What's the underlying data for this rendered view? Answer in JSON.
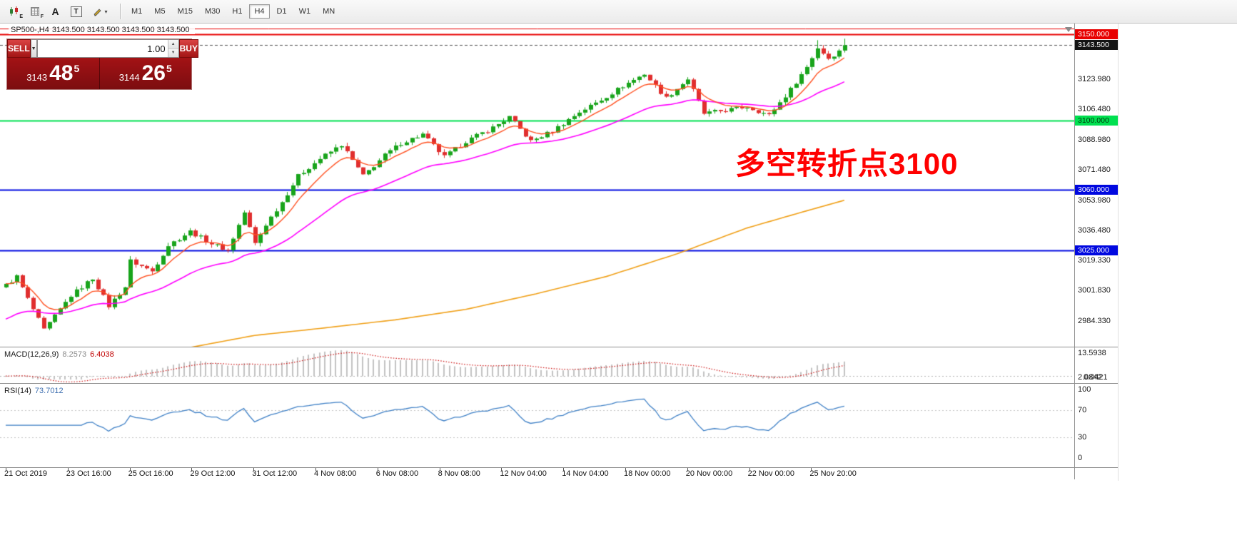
{
  "toolbar": {
    "icons": [
      {
        "name": "chart-type",
        "sub": "E"
      },
      {
        "name": "indicators",
        "sub": "F"
      },
      {
        "name": "text-label",
        "glyph": "A"
      },
      {
        "name": "text-box",
        "glyph": "T"
      },
      {
        "name": "drawing-tools",
        "caret": "▾"
      }
    ],
    "timeframes": [
      "M1",
      "M5",
      "M15",
      "M30",
      "H1",
      "H4",
      "D1",
      "W1",
      "MN"
    ],
    "active_timeframe": "H4"
  },
  "chart": {
    "symbol_label": "SP500-,H4",
    "ohlc_label": "3143.500 3143.500 3143.500 3143.500",
    "annotation": {
      "text": "多空转折点3100",
      "color": "#ff0000"
    },
    "current_price": 3143.5,
    "view": {
      "price_top": 3156.0,
      "price_bottom": 2969.5
    },
    "hlines": [
      {
        "price": 3153.2,
        "color": "#e80000",
        "width": 1
      },
      {
        "price": 3150.0,
        "color": "#e80000",
        "width": 2
      },
      {
        "price": 3100.0,
        "color": "#00e050",
        "width": 2
      },
      {
        "price": 3060.0,
        "color": "#0008e0",
        "width": 2
      },
      {
        "price": 3025.0,
        "color": "#0008e0",
        "width": 2
      }
    ],
    "price_axis": {
      "scale_labels": [
        {
          "text": "3123.980",
          "price": 3123.98
        },
        {
          "text": "3106.480",
          "price": 3106.48
        },
        {
          "text": "3088.980",
          "price": 3088.98
        },
        {
          "text": "3071.480",
          "price": 3071.48
        },
        {
          "text": "3053.980",
          "price": 3053.98
        },
        {
          "text": "3036.480",
          "price": 3036.48
        },
        {
          "text": "3019.330",
          "price": 3019.33
        },
        {
          "text": "3001.830",
          "price": 3001.83
        },
        {
          "text": "2984.330",
          "price": 2984.33
        }
      ],
      "badges": [
        {
          "text": "3150.000",
          "price": 3150.0,
          "bg": "#e80000",
          "fg": "#ffffff"
        },
        {
          "text": "3143.500",
          "price": 3143.5,
          "bg": "#141414",
          "fg": "#ffffff"
        },
        {
          "text": "3100.000",
          "price": 3100.0,
          "bg": "#00e050",
          "fg": "#00320a"
        },
        {
          "text": "3060.000",
          "price": 3060.0,
          "bg": "#0008e0",
          "fg": "#ffffff"
        },
        {
          "text": "3025.000",
          "price": 3025.0,
          "bg": "#0008e0",
          "fg": "#ffffff"
        }
      ]
    }
  },
  "trade_panel": {
    "sell_label": "SELL",
    "buy_label": "BUY",
    "volume": "1.00",
    "sell_price_small": "3143",
    "sell_price_big": "48",
    "sell_price_sup": "5",
    "buy_price_small": "3144",
    "buy_price_big": "26",
    "buy_price_sup": "5"
  },
  "macd": {
    "label": "MACD(12,26,9)",
    "value1": "8.2573",
    "value2": "6.4038",
    "right_labels": [
      {
        "text": "13.5938",
        "pos": "top"
      },
      {
        "text": "2.0842",
        "pos": "bottom"
      },
      {
        "text": "0.0421",
        "pos": "bottom"
      }
    ]
  },
  "rsi": {
    "label": "RSI(14)",
    "value": "73.7012",
    "right_labels": [
      "100",
      "70",
      "30",
      "0"
    ]
  },
  "time_axis": [
    "21 Oct 2019",
    "23 Oct 16:00",
    "25 Oct 16:00",
    "29 Oct 12:00",
    "31 Oct 12:00",
    "4 Nov 08:00",
    "6 Nov 08:00",
    "8 Nov 08:00",
    "12 Nov 04:00",
    "14 Nov 04:00",
    "18 Nov 00:00",
    "20 Nov 00:00",
    "22 Nov 00:00",
    "25 Nov 20:00"
  ],
  "chart_data": {
    "type": "candlestick",
    "symbol": "SP500-",
    "timeframe": "H4",
    "visible_range": {
      "start": "21 Oct 2019",
      "end": "25 Nov 20:00"
    },
    "ylim": [
      2969.5,
      3156.0
    ],
    "n_candles": 156,
    "close_anchors": [
      [
        0,
        3005
      ],
      [
        2,
        3010
      ],
      [
        4,
        2997
      ],
      [
        7,
        2979
      ],
      [
        9,
        2987
      ],
      [
        12,
        2999
      ],
      [
        16,
        3009
      ],
      [
        19,
        2993
      ],
      [
        22,
        3004
      ],
      [
        23,
        3019
      ],
      [
        27,
        3013
      ],
      [
        30,
        3028
      ],
      [
        34,
        3036
      ],
      [
        38,
        3029
      ],
      [
        41,
        3025
      ],
      [
        44,
        3047
      ],
      [
        46,
        3029
      ],
      [
        48,
        3040
      ],
      [
        51,
        3053
      ],
      [
        54,
        3068
      ],
      [
        58,
        3078
      ],
      [
        62,
        3086
      ],
      [
        66,
        3068
      ],
      [
        70,
        3080
      ],
      [
        73,
        3087
      ],
      [
        77,
        3092
      ],
      [
        81,
        3079
      ],
      [
        85,
        3088
      ],
      [
        90,
        3096
      ],
      [
        93,
        3102
      ],
      [
        97,
        3088
      ],
      [
        101,
        3094
      ],
      [
        106,
        3105
      ],
      [
        110,
        3112
      ],
      [
        114,
        3120
      ],
      [
        118,
        3127
      ],
      [
        122,
        3113
      ],
      [
        126,
        3124
      ],
      [
        129,
        3104
      ],
      [
        133,
        3106
      ],
      [
        137,
        3108
      ],
      [
        141,
        3103
      ],
      [
        145,
        3118
      ],
      [
        148,
        3131
      ],
      [
        150,
        3142
      ],
      [
        152,
        3136
      ],
      [
        154,
        3140
      ],
      [
        155,
        3143.5
      ]
    ],
    "wick_boosts": [
      [
        150,
        4
      ],
      [
        155,
        3
      ]
    ],
    "up_color": "#18a41b",
    "down_color": "#e02e2e",
    "moving_averages": [
      {
        "name": "fast-ma",
        "color": "#ff4f1f",
        "period": 8
      },
      {
        "name": "medium-ma",
        "color": "#ff00ff",
        "period": 30,
        "seed": 2984
      },
      {
        "name": "slow-ma",
        "color": "#f0a018",
        "anchors": [
          [
            34,
            2969
          ],
          [
            46,
            2976
          ],
          [
            58,
            2980
          ],
          [
            72,
            2985
          ],
          [
            85,
            2991
          ],
          [
            98,
            3000
          ],
          [
            111,
            3010
          ],
          [
            124,
            3023
          ],
          [
            137,
            3038
          ],
          [
            147,
            3047
          ],
          [
            155,
            3054
          ]
        ]
      }
    ],
    "indicators": {
      "macd": "12,26,9",
      "macd_values": [
        8.2573,
        6.4038
      ],
      "rsi": "14",
      "rsi_value": 73.7012
    }
  }
}
